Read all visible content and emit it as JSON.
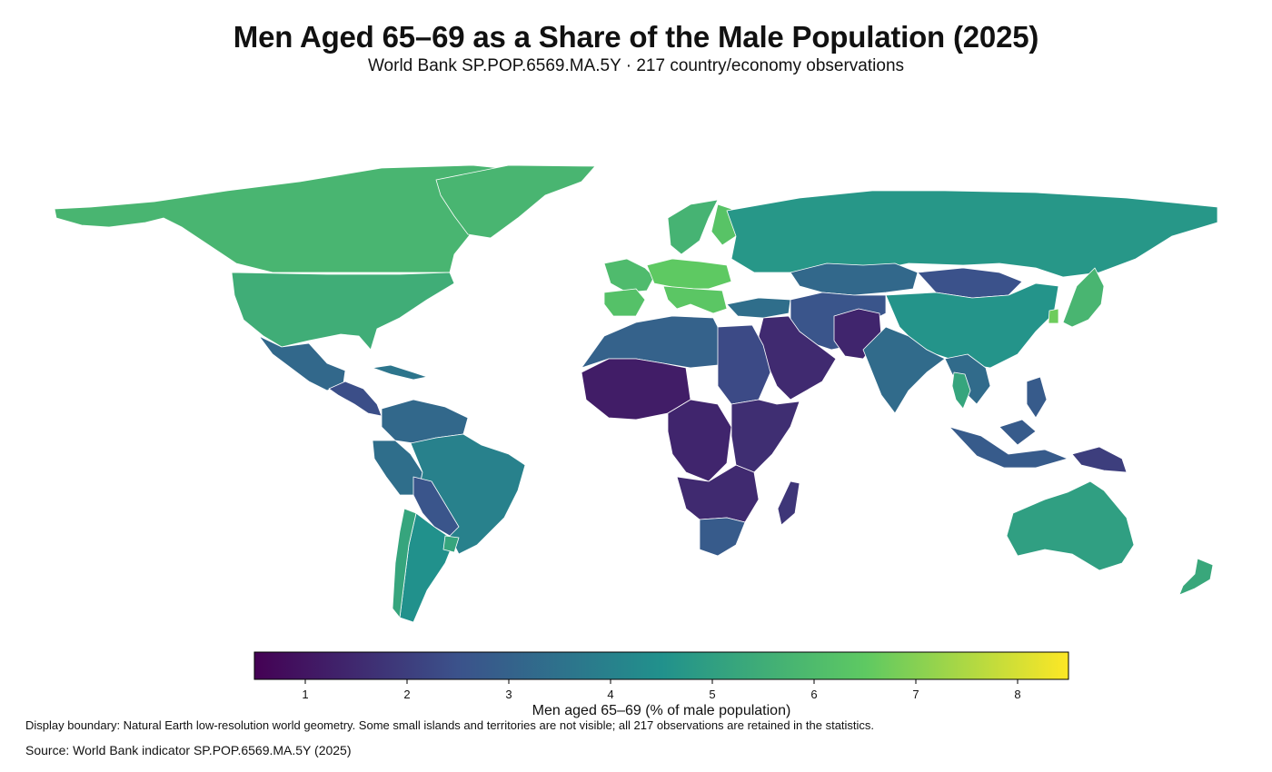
{
  "title": "Men Aged 65–69 as a Share of the Male Population (2025)",
  "subtitle": "World Bank SP.POP.6569.MA.5Y · 217 country/economy observations",
  "colorbar": {
    "label": "Men aged 65–69 (% of male population)",
    "range": [
      0.5,
      8.5
    ],
    "ticks": [
      1,
      2,
      3,
      4,
      5,
      6,
      7,
      8
    ],
    "colorscale": [
      "#440154",
      "#3b528b",
      "#21918c",
      "#5ec962",
      "#fde725"
    ]
  },
  "note": "Display boundary: Natural Earth low-resolution world geometry. Some small islands and territories are not visible; all 217 observations are retained in the statistics.",
  "source": "Source: World Bank indicator SP.POP.6569.MA.5Y (2025)",
  "regions": [
    {
      "name": "Canada",
      "value": 5.8
    },
    {
      "name": "Greenland",
      "value": 5.8
    },
    {
      "name": "United States",
      "value": 5.5
    },
    {
      "name": "Mexico",
      "value": 3.2
    },
    {
      "name": "Central America",
      "value": 2.4
    },
    {
      "name": "Caribbean",
      "value": 3.6
    },
    {
      "name": "Colombia / Venezuela",
      "value": 3.2
    },
    {
      "name": "Peru / Ecuador",
      "value": 3.4
    },
    {
      "name": "Brazil",
      "value": 4.0
    },
    {
      "name": "Bolivia / Paraguay",
      "value": 2.6
    },
    {
      "name": "Argentina",
      "value": 4.5
    },
    {
      "name": "Chile",
      "value": 5.2
    },
    {
      "name": "Uruguay",
      "value": 5.2
    },
    {
      "name": "Western Europe",
      "value": 6.0
    },
    {
      "name": "Central Europe",
      "value": 6.5
    },
    {
      "name": "Iberia",
      "value": 6.2
    },
    {
      "name": "Italy / Balkans",
      "value": 6.4
    },
    {
      "name": "Scandinavia",
      "value": 5.7
    },
    {
      "name": "Finland",
      "value": 6.3
    },
    {
      "name": "Russia",
      "value": 4.7
    },
    {
      "name": "Kazakhstan",
      "value": 3.2
    },
    {
      "name": "Mongolia",
      "value": 2.5
    },
    {
      "name": "China",
      "value": 4.6
    },
    {
      "name": "Japan",
      "value": 5.8
    },
    {
      "name": "South Korea",
      "value": 6.7
    },
    {
      "name": "Turkey",
      "value": 3.4
    },
    {
      "name": "Iran / Central Asia",
      "value": 2.6
    },
    {
      "name": "Afghanistan / Pakistan",
      "value": 1.4
    },
    {
      "name": "India",
      "value": 3.3
    },
    {
      "name": "Southeast Asia",
      "value": 3.3
    },
    {
      "name": "Thailand",
      "value": 5.2
    },
    {
      "name": "Indonesia / Philippines",
      "value": 2.8
    },
    {
      "name": "Papua New Guinea",
      "value": 2.0
    },
    {
      "name": "Saudi Arabia / Yemen",
      "value": 1.5
    },
    {
      "name": "North Africa",
      "value": 3.0
    },
    {
      "name": "Egypt / Sudan",
      "value": 2.3
    },
    {
      "name": "West Africa",
      "value": 1.2
    },
    {
      "name": "Central Africa",
      "value": 1.4
    },
    {
      "name": "East Africa",
      "value": 1.6
    },
    {
      "name": "Southern Africa",
      "value": 1.5
    },
    {
      "name": "South Africa",
      "value": 2.8
    },
    {
      "name": "Madagascar",
      "value": 1.8
    },
    {
      "name": "Australia",
      "value": 5.0
    },
    {
      "name": "New Zealand",
      "value": 5.3
    }
  ]
}
